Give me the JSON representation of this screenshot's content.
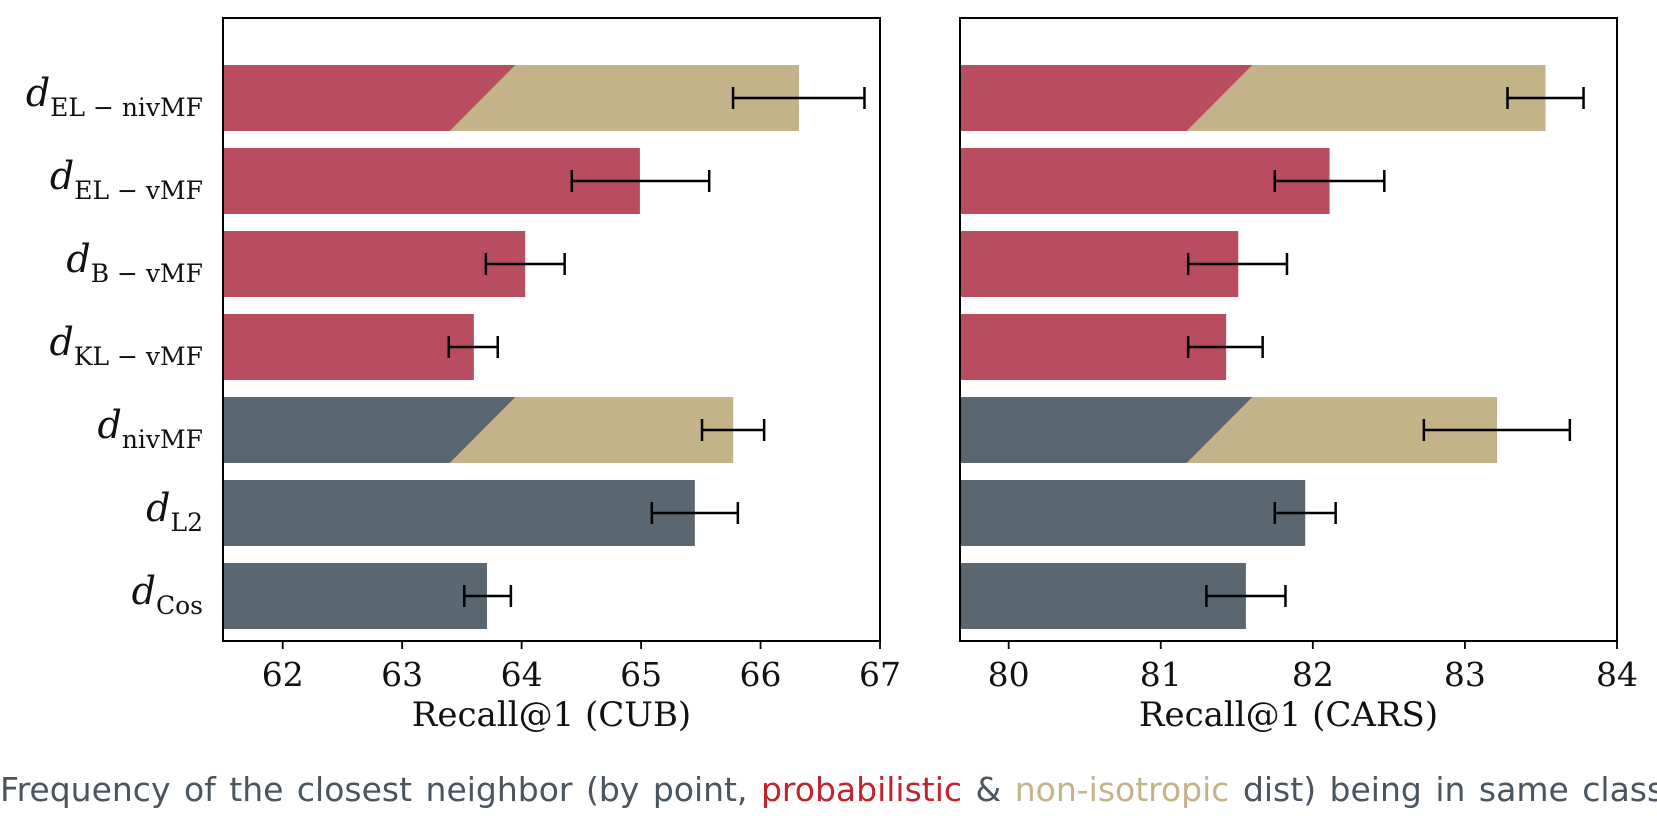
{
  "colors": {
    "probabilistic": "#b84d5f",
    "point": "#5a6770",
    "non_isotropic": "#c4b389",
    "axis": "#000000",
    "caption_text": "#4a5560",
    "caption_probabilistic": "#c0242e",
    "caption_non_isotropic": "#c4b389"
  },
  "legend_caption": {
    "prefix": "Frequency of the closest neighbor (by point, ",
    "probabilistic": "probabilistic",
    "amp": " & ",
    "non_isotropic": "non-isotropic",
    "suffix": " dist) being in same class."
  },
  "chart_data": [
    {
      "type": "bar",
      "orientation": "horizontal",
      "xlabel": "Recall@1 (CUB)",
      "xlim": [
        61.5,
        67
      ],
      "xticks": [
        "62",
        "63",
        "64",
        "65",
        "66",
        "67"
      ],
      "grid": false,
      "categories": [
        {
          "base": "d",
          "sub": "EL − nivMF",
          "group": "probabilistic",
          "non_isotropic": true
        },
        {
          "base": "d",
          "sub": "EL − vMF",
          "group": "probabilistic",
          "non_isotropic": false
        },
        {
          "base": "d",
          "sub": "B − vMF",
          "group": "probabilistic",
          "non_isotropic": false
        },
        {
          "base": "d",
          "sub": "KL − vMF",
          "group": "probabilistic",
          "non_isotropic": false
        },
        {
          "base": "d",
          "sub": "nivMF",
          "group": "point",
          "non_isotropic": true
        },
        {
          "base": "d",
          "sub": "L2",
          "group": "point",
          "non_isotropic": false
        },
        {
          "base": "d",
          "sub": "Cos",
          "group": "point",
          "non_isotropic": false
        }
      ],
      "values": [
        66.32,
        64.99,
        64.03,
        63.6,
        65.77,
        65.45,
        63.71
      ],
      "errors": [
        [
          65.77,
          66.87
        ],
        [
          64.42,
          65.57
        ],
        [
          63.7,
          64.36
        ],
        [
          63.39,
          63.8
        ],
        [
          65.51,
          66.03
        ],
        [
          65.09,
          65.81
        ],
        [
          63.52,
          63.91
        ]
      ]
    },
    {
      "type": "bar",
      "orientation": "horizontal",
      "xlabel": "Recall@1 (CARS)",
      "xlim": [
        79.68,
        84
      ],
      "xticks": [
        "80",
        "81",
        "82",
        "83",
        "84"
      ],
      "grid": false,
      "categories": [
        {
          "base": "d",
          "sub": "EL − nivMF",
          "group": "probabilistic",
          "non_isotropic": true
        },
        {
          "base": "d",
          "sub": "EL − vMF",
          "group": "probabilistic",
          "non_isotropic": false
        },
        {
          "base": "d",
          "sub": "B − vMF",
          "group": "probabilistic",
          "non_isotropic": false
        },
        {
          "base": "d",
          "sub": "KL − vMF",
          "group": "probabilistic",
          "non_isotropic": false
        },
        {
          "base": "d",
          "sub": "nivMF",
          "group": "point",
          "non_isotropic": true
        },
        {
          "base": "d",
          "sub": "L2",
          "group": "point",
          "non_isotropic": false
        },
        {
          "base": "d",
          "sub": "Cos",
          "group": "point",
          "non_isotropic": false
        }
      ],
      "values": [
        83.53,
        82.11,
        81.51,
        81.43,
        83.21,
        81.95,
        81.56
      ],
      "errors": [
        [
          83.28,
          83.78
        ],
        [
          81.75,
          82.47
        ],
        [
          81.18,
          81.83
        ],
        [
          81.18,
          81.67
        ],
        [
          82.73,
          83.69
        ],
        [
          81.75,
          82.15
        ],
        [
          81.3,
          81.82
        ]
      ]
    }
  ]
}
